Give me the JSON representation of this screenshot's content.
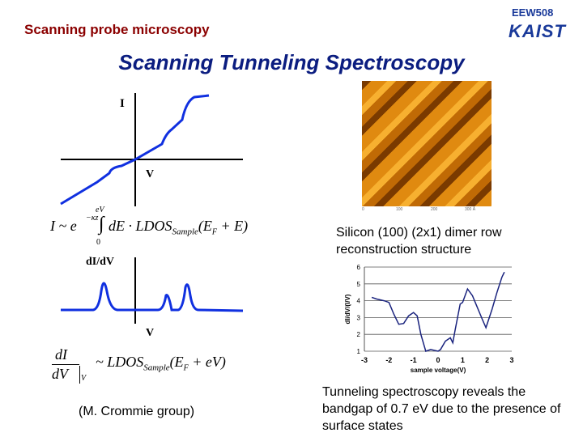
{
  "header": {
    "section": "Scanning probe microscopy",
    "course": "EEW508",
    "logo": "KAIST",
    "title": "Scanning Tunneling Spectroscopy"
  },
  "left": {
    "iv_label_i": "I",
    "iv_label_v": "V",
    "formula1": {
      "lhs": "I ~ e",
      "exp": "−κz",
      "upper": "eV",
      "lower": "0",
      "body": "dE · LDOS",
      "sub": "Sample",
      "arg": "(E",
      "argsub": "F",
      "argtail": " + E)"
    },
    "didv_label": "dI/dV",
    "didv_label_v": "V",
    "formula2": {
      "num": "dI",
      "den": "dV",
      "densub": "V",
      "body": "~ LDOS",
      "sub": "Sample",
      "arg": "(E",
      "argsub": "F",
      "argtail": " + eV)"
    },
    "credit": "(M. Crommie group)"
  },
  "stm_image": {
    "scale_ticks": [
      "0",
      "100",
      "200",
      "300 Å"
    ],
    "caption": "Silicon (100) (2x1) dimer row reconstruction structure"
  },
  "chart_data": {
    "type": "line",
    "xlabel": "sample voltage(V)",
    "ylabel": "dI/dV/(I/V)",
    "xlim": [
      -3,
      3
    ],
    "ylim": [
      1,
      6
    ],
    "xticks": [
      -3,
      -2,
      -1,
      0,
      1,
      2,
      3
    ],
    "yticks": [
      1,
      2,
      3,
      4,
      5,
      6
    ],
    "grid": "horizontal",
    "color": "#1a237e",
    "x": [
      -2.7,
      -2.5,
      -2.2,
      -2.0,
      -1.8,
      -1.6,
      -1.4,
      -1.2,
      -1.0,
      -0.85,
      -0.7,
      -0.5,
      -0.3,
      0,
      0.1,
      0.3,
      0.5,
      0.6,
      0.7,
      0.9,
      1.0,
      1.2,
      1.4,
      1.6,
      1.8,
      1.95,
      2.2,
      2.4,
      2.6,
      2.7
    ],
    "y": [
      4.2,
      4.1,
      4.0,
      3.9,
      3.2,
      2.6,
      2.65,
      3.1,
      3.3,
      3.1,
      2.0,
      1.0,
      1.1,
      1.0,
      1.1,
      1.6,
      1.8,
      1.5,
      2.3,
      3.8,
      3.9,
      4.7,
      4.3,
      3.6,
      2.9,
      2.4,
      3.5,
      4.5,
      5.4,
      5.7
    ]
  },
  "bottom_caption": "Tunneling spectroscopy reveals the bandgap of 0.7 eV due to the presence of surface states"
}
